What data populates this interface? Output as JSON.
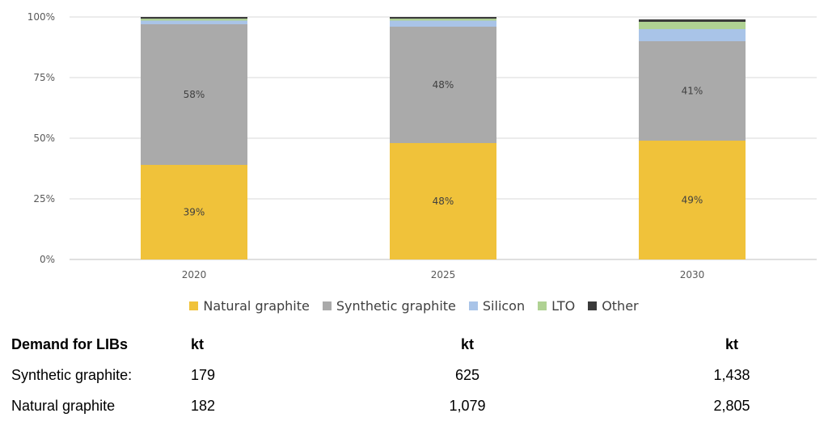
{
  "chart_data": {
    "type": "bar",
    "stacked": true,
    "categories": [
      "2020",
      "2025",
      "2030"
    ],
    "ylim": [
      0,
      100
    ],
    "yticks": [
      "0%",
      "25%",
      "50%",
      "75%",
      "100%"
    ],
    "grid": true,
    "legend_position": "bottom",
    "series": [
      {
        "name": "Natural graphite",
        "color": "#F0C23A",
        "values": [
          39,
          48,
          49
        ],
        "labels": [
          "39%",
          "48%",
          "49%"
        ]
      },
      {
        "name": "Synthetic graphite",
        "color": "#AAAAAA",
        "values": [
          58,
          48,
          41
        ],
        "labels": [
          "58%",
          "48%",
          "41%"
        ]
      },
      {
        "name": "Silicon",
        "color": "#A9C4E8",
        "values": [
          1.5,
          2.5,
          5
        ],
        "labels": [
          "",
          "",
          ""
        ]
      },
      {
        "name": "LTO",
        "color": "#B0D293",
        "values": [
          0.8,
          0.8,
          3
        ],
        "labels": [
          "",
          "",
          ""
        ]
      },
      {
        "name": "Other",
        "color": "#3A3A3A",
        "values": [
          0.7,
          0.7,
          1
        ],
        "labels": [
          "",
          "",
          ""
        ]
      }
    ]
  },
  "table": {
    "header": [
      "Demand for LIBs",
      "kt",
      "kt",
      "kt"
    ],
    "rows": [
      [
        "Synthetic graphite:",
        "179",
        "625",
        "1,438"
      ],
      [
        "Natural graphite",
        "182",
        "1,079",
        "2,805"
      ]
    ]
  }
}
